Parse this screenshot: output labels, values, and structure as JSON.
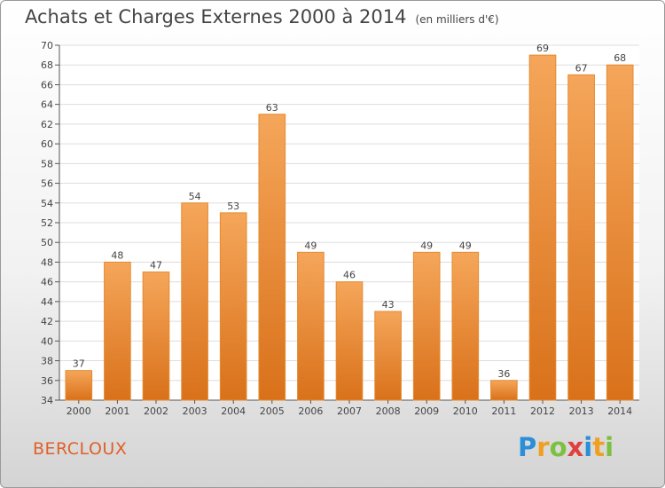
{
  "title": "Achats et Charges Externes 2000 à 2014",
  "unit": "(en milliers d'€)",
  "commune": "BERCLOUX",
  "logo": {
    "letters": [
      {
        "ch": "P",
        "color": "#2a8fd8"
      },
      {
        "ch": "r",
        "color": "#f0a020"
      },
      {
        "ch": "o",
        "color": "#7cc040"
      },
      {
        "ch": "x",
        "color": "#e04040"
      },
      {
        "ch": "i",
        "color": "#2a8fd8"
      },
      {
        "ch": "t",
        "color": "#f0a020"
      },
      {
        "ch": "i",
        "color": "#7cc040"
      }
    ]
  },
  "colors": {
    "bar_top": "#f5a65a",
    "bar_bottom": "#d9711a",
    "bar_stroke": "#e58a30",
    "grid": "#dddddd",
    "text": "#444444",
    "commune": "#e0602a"
  },
  "chart_data": {
    "type": "bar",
    "categories": [
      "2000",
      "2001",
      "2002",
      "2003",
      "2004",
      "2005",
      "2006",
      "2007",
      "2008",
      "2009",
      "2010",
      "2011",
      "2012",
      "2013",
      "2014"
    ],
    "values": [
      37,
      48,
      47,
      54,
      53,
      63,
      49,
      46,
      43,
      49,
      49,
      36,
      69,
      67,
      68
    ],
    "title": "Achats et Charges Externes 2000 à 2014",
    "ylim": [
      34,
      70
    ],
    "yticks": [
      34,
      36,
      38,
      40,
      42,
      44,
      46,
      48,
      50,
      52,
      54,
      56,
      58,
      60,
      62,
      64,
      66,
      68,
      70
    ],
    "grid": true,
    "data_labels": true
  }
}
